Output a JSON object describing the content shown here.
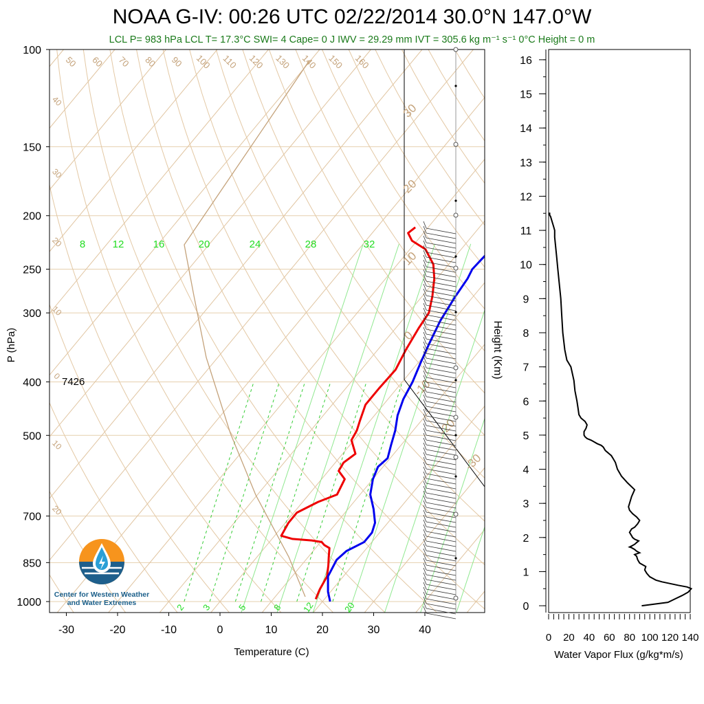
{
  "title": "NOAA G-IV: 00:26 UTC 02/22/2014  30.0°N 147.0°W",
  "subtitle": "LCL P= 983 hPa  LCL T= 17.3°C  SWI= 4  Cape= 0 J  IWV = 29.29 mm  IVT = 305.6 kg m⁻¹ s⁻¹  0°C Height = 0 m",
  "logo": {
    "line1": "Center for Western Weather",
    "line2": "and Water Extremes",
    "icon": "water-drop-sun-icon"
  },
  "colors": {
    "temperature": "#ee0000",
    "dewpoint": "#0000ee",
    "isotherm": "#d2b48c",
    "mixing_ratio": "#00cc00",
    "flux": "#000000"
  },
  "chart_data": [
    {
      "type": "line",
      "subtype": "skew-T log-P sounding",
      "xlabel": "Temperature (C)",
      "ylabel": "P (hPa)",
      "xlim": [
        -35,
        50
      ],
      "ylim": [
        1050,
        100
      ],
      "y_scale": "log",
      "xticks": [
        "-30",
        "-20",
        "-10",
        "0",
        "10",
        "20",
        "30",
        "40"
      ],
      "yticks": [
        "100",
        "150",
        "200",
        "250",
        "300",
        "400",
        "500",
        "700",
        "850",
        "1000"
      ],
      "height_label": "7426",
      "mixing_ratio_labels_top": [
        "8",
        "12",
        "16",
        "20",
        "24",
        "28",
        "32"
      ],
      "mixing_ratio_labels_bottom": [
        "2",
        "3",
        "5",
        "8",
        "12",
        "20"
      ],
      "dry_adiabat_labels": [
        "50",
        "60",
        "70",
        "80",
        "90",
        "100",
        "110",
        "120",
        "130",
        "140",
        "150",
        "160"
      ],
      "series": [
        {
          "name": "Temperature",
          "color": "#ee0000",
          "x": [
            18.3,
            17.5,
            16.8,
            15.3,
            14,
            12.7,
            11.2,
            10.2,
            8,
            4,
            1.3,
            0.6,
            0.6,
            3,
            5.5,
            4.5,
            2,
            1.6,
            2.5,
            -0.5,
            -1,
            -2,
            -3.5,
            -3.5,
            -3.3,
            -4.5,
            -5.5,
            -6,
            -8,
            -10.5,
            -13,
            -17,
            -21,
            -23,
            -22.5
          ],
          "y": [
            990,
            950,
            900,
            860,
            830,
            800,
            790,
            780,
            775,
            770,
            760,
            720,
            690,
            660,
            640,
            600,
            580,
            560,
            540,
            510,
            490,
            470,
            440,
            410,
            380,
            350,
            320,
            300,
            280,
            260,
            245,
            230,
            222,
            215,
            210
          ]
        },
        {
          "name": "Dewpoint",
          "color": "#0000ee",
          "x": [
            21.5,
            19.5,
            17,
            16,
            16.5,
            18.5,
            18.5,
            17.5,
            15,
            12,
            10,
            9,
            9.5,
            8,
            6.5,
            4.5,
            3,
            2,
            0.5,
            -1,
            -2.5,
            -3.5,
            -4,
            -4.6,
            -4.4,
            -4,
            -3.2
          ],
          "y": [
            1000,
            960,
            900,
            840,
            810,
            780,
            750,
            720,
            680,
            640,
            600,
            570,
            550,
            520,
            490,
            460,
            430,
            400,
            370,
            340,
            310,
            280,
            260,
            250,
            240,
            225,
            210
          ]
        }
      ]
    },
    {
      "type": "line",
      "xlabel": "Water Vapor Flux (g/kg*m/s)",
      "ylabel": "Height (Km)",
      "xlim": [
        0,
        140
      ],
      "ylim": [
        -0.2,
        16.3
      ],
      "xticks": [
        "0",
        "20",
        "40",
        "60",
        "80",
        "100",
        "120",
        "140"
      ],
      "yticks": [
        "0",
        "1",
        "2",
        "3",
        "4",
        "5",
        "6",
        "7",
        "8",
        "9",
        "10",
        "11",
        "12",
        "13",
        "14",
        "15",
        "16"
      ],
      "series": [
        {
          "name": "flux",
          "x": [
            92,
            105,
            118,
            125,
            132,
            138,
            141,
            137,
            128,
            120,
            112,
            106,
            103,
            100,
            97,
            95,
            96,
            93,
            90,
            88,
            87,
            85,
            90,
            87,
            85,
            82,
            80,
            82,
            85,
            87,
            89,
            85,
            83,
            82,
            81,
            80,
            81,
            82,
            85,
            88,
            90,
            87,
            83,
            80,
            79,
            80,
            82,
            85,
            78,
            72,
            68,
            66,
            64,
            63,
            62,
            60,
            58,
            56,
            55,
            54,
            52,
            48,
            45,
            42,
            38,
            36,
            35,
            35,
            37,
            38,
            36,
            32,
            30,
            29,
            28,
            26,
            25,
            22,
            18,
            16,
            14,
            13,
            12,
            11,
            10,
            9,
            8,
            7,
            6,
            6,
            5,
            4,
            3,
            2,
            1,
            1,
            0
          ],
          "y": [
            0,
            0.05,
            0.1,
            0.2,
            0.3,
            0.4,
            0.5,
            0.55,
            0.6,
            0.65,
            0.7,
            0.75,
            0.8,
            0.85,
            0.95,
            1.05,
            1.15,
            1.2,
            1.25,
            1.35,
            1.45,
            1.5,
            1.55,
            1.6,
            1.65,
            1.7,
            1.72,
            1.75,
            1.8,
            1.85,
            1.9,
            1.95,
            2.0,
            2.05,
            2.1,
            2.15,
            2.2,
            2.25,
            2.3,
            2.4,
            2.5,
            2.6,
            2.7,
            2.8,
            2.9,
            3.0,
            3.2,
            3.4,
            3.6,
            3.8,
            4.0,
            4.2,
            4.3,
            4.35,
            4.4,
            4.45,
            4.5,
            4.55,
            4.6,
            4.65,
            4.7,
            4.75,
            4.8,
            4.85,
            4.9,
            4.95,
            5.0,
            5.1,
            5.2,
            5.3,
            5.4,
            5.5,
            5.6,
            5.8,
            6.0,
            6.3,
            6.6,
            7.0,
            7.2,
            7.5,
            8.0,
            8.5,
            9.0,
            9.3,
            9.6,
            9.9,
            10.2,
            10.5,
            10.8,
            11.0,
            11.1,
            11.2,
            11.3,
            11.4,
            11.45,
            11.5,
            11.5
          ]
        }
      ]
    }
  ]
}
